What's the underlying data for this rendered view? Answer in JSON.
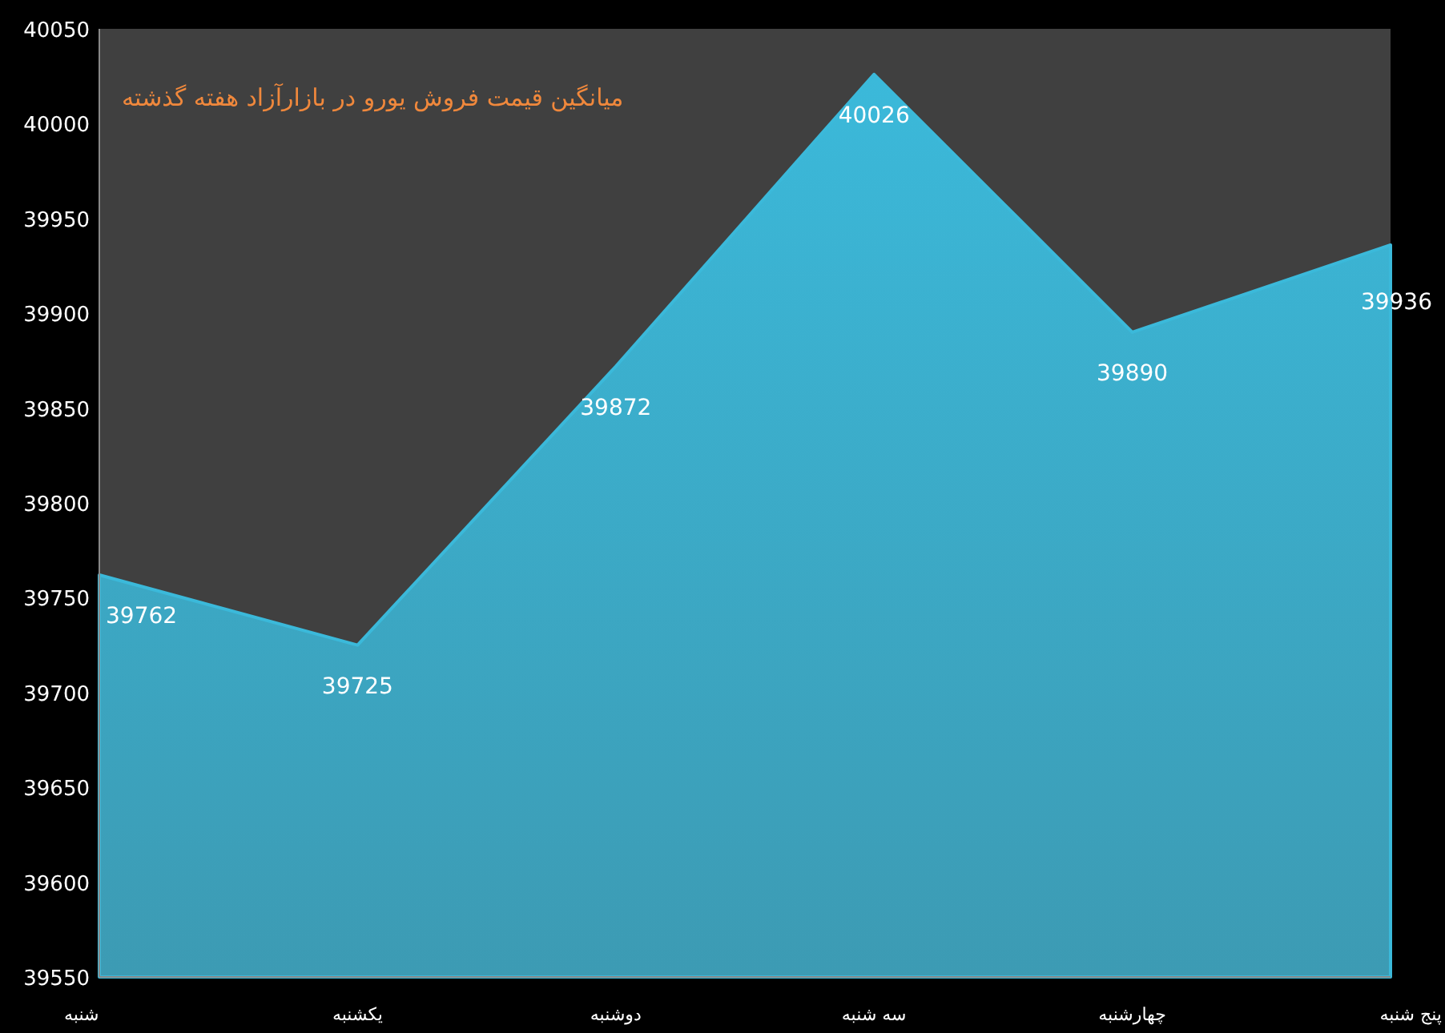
{
  "chart_data": {
    "type": "area",
    "title": "میانگین قیمت فروش یورو در بازارآزاد هفته گذشته",
    "categories": [
      "شنبه",
      "یکشنبه",
      "دوشنبه",
      "سه شنبه",
      "چهارشنبه",
      "پنج شنبه"
    ],
    "series": [
      {
        "color": "#3bb9da",
        "values": [
          39762,
          39725,
          39872,
          40026,
          39890,
          39936
        ]
      }
    ],
    "ylim": [
      39550,
      40050
    ],
    "yticks": [
      39550,
      39600,
      39650,
      39700,
      39750,
      39800,
      39850,
      39900,
      39950,
      40000,
      40050
    ],
    "data_labels": true,
    "grid": false
  }
}
